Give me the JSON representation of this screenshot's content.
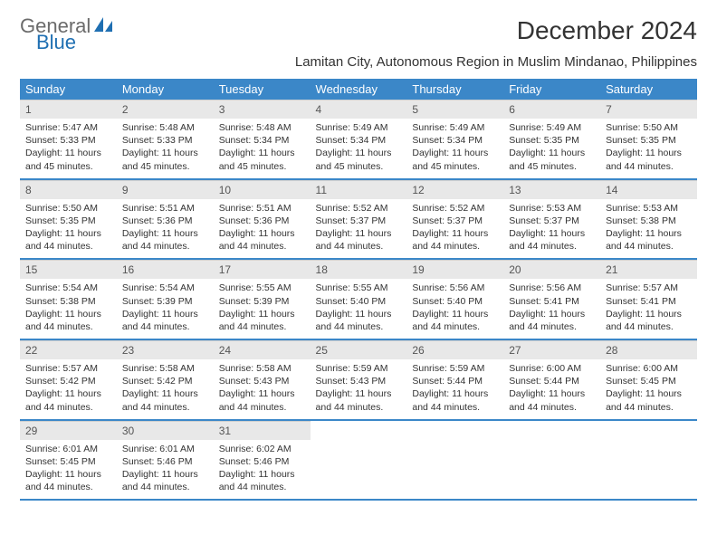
{
  "logo": {
    "text1": "General",
    "text2": "Blue",
    "icon_color": "#1f6fb2"
  },
  "title": "December 2024",
  "subtitle": "Lamitan City, Autonomous Region in Muslim Mindanao, Philippines",
  "header_bg": "#3b87c8",
  "daynum_bg": "#e8e8e8",
  "border_color": "#3b87c8",
  "weekdays": [
    "Sunday",
    "Monday",
    "Tuesday",
    "Wednesday",
    "Thursday",
    "Friday",
    "Saturday"
  ],
  "weeks": [
    [
      {
        "n": "1",
        "sr": "5:47 AM",
        "ss": "5:33 PM",
        "dl": "11 hours and 45 minutes."
      },
      {
        "n": "2",
        "sr": "5:48 AM",
        "ss": "5:33 PM",
        "dl": "11 hours and 45 minutes."
      },
      {
        "n": "3",
        "sr": "5:48 AM",
        "ss": "5:34 PM",
        "dl": "11 hours and 45 minutes."
      },
      {
        "n": "4",
        "sr": "5:49 AM",
        "ss": "5:34 PM",
        "dl": "11 hours and 45 minutes."
      },
      {
        "n": "5",
        "sr": "5:49 AM",
        "ss": "5:34 PM",
        "dl": "11 hours and 45 minutes."
      },
      {
        "n": "6",
        "sr": "5:49 AM",
        "ss": "5:35 PM",
        "dl": "11 hours and 45 minutes."
      },
      {
        "n": "7",
        "sr": "5:50 AM",
        "ss": "5:35 PM",
        "dl": "11 hours and 44 minutes."
      }
    ],
    [
      {
        "n": "8",
        "sr": "5:50 AM",
        "ss": "5:35 PM",
        "dl": "11 hours and 44 minutes."
      },
      {
        "n": "9",
        "sr": "5:51 AM",
        "ss": "5:36 PM",
        "dl": "11 hours and 44 minutes."
      },
      {
        "n": "10",
        "sr": "5:51 AM",
        "ss": "5:36 PM",
        "dl": "11 hours and 44 minutes."
      },
      {
        "n": "11",
        "sr": "5:52 AM",
        "ss": "5:37 PM",
        "dl": "11 hours and 44 minutes."
      },
      {
        "n": "12",
        "sr": "5:52 AM",
        "ss": "5:37 PM",
        "dl": "11 hours and 44 minutes."
      },
      {
        "n": "13",
        "sr": "5:53 AM",
        "ss": "5:37 PM",
        "dl": "11 hours and 44 minutes."
      },
      {
        "n": "14",
        "sr": "5:53 AM",
        "ss": "5:38 PM",
        "dl": "11 hours and 44 minutes."
      }
    ],
    [
      {
        "n": "15",
        "sr": "5:54 AM",
        "ss": "5:38 PM",
        "dl": "11 hours and 44 minutes."
      },
      {
        "n": "16",
        "sr": "5:54 AM",
        "ss": "5:39 PM",
        "dl": "11 hours and 44 minutes."
      },
      {
        "n": "17",
        "sr": "5:55 AM",
        "ss": "5:39 PM",
        "dl": "11 hours and 44 minutes."
      },
      {
        "n": "18",
        "sr": "5:55 AM",
        "ss": "5:40 PM",
        "dl": "11 hours and 44 minutes."
      },
      {
        "n": "19",
        "sr": "5:56 AM",
        "ss": "5:40 PM",
        "dl": "11 hours and 44 minutes."
      },
      {
        "n": "20",
        "sr": "5:56 AM",
        "ss": "5:41 PM",
        "dl": "11 hours and 44 minutes."
      },
      {
        "n": "21",
        "sr": "5:57 AM",
        "ss": "5:41 PM",
        "dl": "11 hours and 44 minutes."
      }
    ],
    [
      {
        "n": "22",
        "sr": "5:57 AM",
        "ss": "5:42 PM",
        "dl": "11 hours and 44 minutes."
      },
      {
        "n": "23",
        "sr": "5:58 AM",
        "ss": "5:42 PM",
        "dl": "11 hours and 44 minutes."
      },
      {
        "n": "24",
        "sr": "5:58 AM",
        "ss": "5:43 PM",
        "dl": "11 hours and 44 minutes."
      },
      {
        "n": "25",
        "sr": "5:59 AM",
        "ss": "5:43 PM",
        "dl": "11 hours and 44 minutes."
      },
      {
        "n": "26",
        "sr": "5:59 AM",
        "ss": "5:44 PM",
        "dl": "11 hours and 44 minutes."
      },
      {
        "n": "27",
        "sr": "6:00 AM",
        "ss": "5:44 PM",
        "dl": "11 hours and 44 minutes."
      },
      {
        "n": "28",
        "sr": "6:00 AM",
        "ss": "5:45 PM",
        "dl": "11 hours and 44 minutes."
      }
    ],
    [
      {
        "n": "29",
        "sr": "6:01 AM",
        "ss": "5:45 PM",
        "dl": "11 hours and 44 minutes."
      },
      {
        "n": "30",
        "sr": "6:01 AM",
        "ss": "5:46 PM",
        "dl": "11 hours and 44 minutes."
      },
      {
        "n": "31",
        "sr": "6:02 AM",
        "ss": "5:46 PM",
        "dl": "11 hours and 44 minutes."
      },
      null,
      null,
      null,
      null
    ]
  ],
  "labels": {
    "sunrise": "Sunrise:",
    "sunset": "Sunset:",
    "daylight": "Daylight:"
  }
}
